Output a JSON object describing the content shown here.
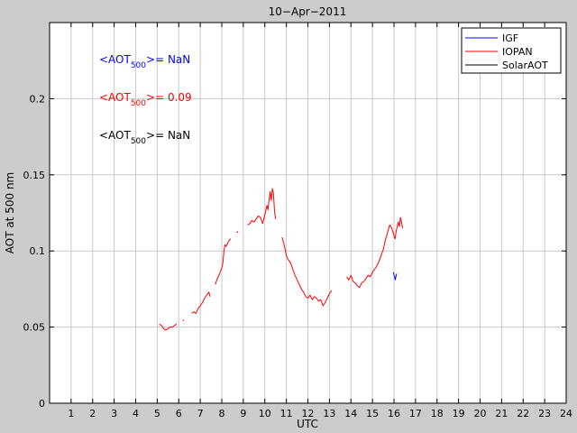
{
  "chart_data": {
    "type": "line",
    "title": "10−Apr−2011",
    "xlabel": "UTC",
    "ylabel": "AOT at 500 nm",
    "xlim": [
      0,
      24
    ],
    "ylim": [
      0,
      0.25
    ],
    "xticks": [
      1,
      2,
      3,
      4,
      5,
      6,
      7,
      8,
      9,
      10,
      11,
      12,
      13,
      14,
      15,
      16,
      17,
      18,
      19,
      20,
      21,
      22,
      23,
      24
    ],
    "yticks": [
      0,
      0.05,
      0.1,
      0.15,
      0.2
    ],
    "ytick_labels": [
      "0",
      "0.05",
      "0.1",
      "0.15",
      "0.2"
    ],
    "grid": true,
    "legend_position": "top-right",
    "annotations": [
      {
        "pre": "<AOT",
        "sub": "500",
        "post": ">=  NaN",
        "color": "#0000ff"
      },
      {
        "pre": "<AOT",
        "sub": "500",
        "post": ">= 0.09",
        "color": "#ff0000"
      },
      {
        "pre": "<AOT",
        "sub": "500",
        "post": ">=  NaN",
        "color": "#000000"
      }
    ],
    "series": [
      {
        "name": "IGF",
        "color": "#0000ff",
        "segments": [
          [
            [
              15.98,
              0.086
            ],
            [
              16.0,
              0.084
            ],
            [
              16.03,
              0.083
            ],
            [
              16.06,
              0.081
            ],
            [
              16.09,
              0.083
            ],
            [
              16.12,
              0.085
            ]
          ]
        ]
      },
      {
        "name": "IOPAN",
        "color": "#ff0000",
        "segments": [
          [
            [
              5.1,
              0.052
            ],
            [
              5.2,
              0.051
            ],
            [
              5.3,
              0.049
            ],
            [
              5.4,
              0.048
            ],
            [
              5.5,
              0.049
            ],
            [
              5.6,
              0.05
            ],
            [
              5.7,
              0.05
            ],
            [
              5.8,
              0.051
            ],
            [
              5.9,
              0.052
            ]
          ],
          [
            [
              6.2,
              0.055
            ],
            [
              6.22,
              0.054
            ]
          ],
          [
            [
              6.6,
              0.059
            ],
            [
              6.7,
              0.06
            ],
            [
              6.8,
              0.059
            ],
            [
              6.9,
              0.062
            ],
            [
              7.0,
              0.064
            ],
            [
              7.1,
              0.066
            ],
            [
              7.2,
              0.069
            ],
            [
              7.3,
              0.071
            ],
            [
              7.4,
              0.073
            ],
            [
              7.45,
              0.07
            ]
          ],
          [
            [
              7.7,
              0.078
            ],
            [
              7.8,
              0.082
            ],
            [
              7.9,
              0.085
            ],
            [
              8.0,
              0.089
            ],
            [
              8.05,
              0.092
            ],
            [
              8.1,
              0.1
            ],
            [
              8.15,
              0.104
            ],
            [
              8.2,
              0.103
            ],
            [
              8.3,
              0.106
            ],
            [
              8.4,
              0.108
            ]
          ],
          [
            [
              8.7,
              0.113
            ],
            [
              8.75,
              0.112
            ]
          ],
          [
            [
              9.2,
              0.117
            ],
            [
              9.3,
              0.118
            ],
            [
              9.4,
              0.12
            ],
            [
              9.5,
              0.119
            ],
            [
              9.6,
              0.121
            ],
            [
              9.7,
              0.123
            ],
            [
              9.8,
              0.122
            ],
            [
              9.9,
              0.118
            ],
            [
              10.0,
              0.124
            ],
            [
              10.1,
              0.13
            ],
            [
              10.15,
              0.127
            ],
            [
              10.2,
              0.134
            ],
            [
              10.25,
              0.139
            ],
            [
              10.3,
              0.133
            ],
            [
              10.35,
              0.141
            ],
            [
              10.4,
              0.138
            ],
            [
              10.45,
              0.126
            ],
            [
              10.5,
              0.121
            ]
          ],
          [
            [
              10.8,
              0.109
            ],
            [
              10.9,
              0.104
            ],
            [
              11.0,
              0.097
            ],
            [
              11.1,
              0.094
            ],
            [
              11.2,
              0.092
            ],
            [
              11.3,
              0.088
            ],
            [
              11.4,
              0.084
            ],
            [
              11.5,
              0.081
            ],
            [
              11.6,
              0.078
            ],
            [
              11.7,
              0.075
            ],
            [
              11.8,
              0.073
            ],
            [
              11.9,
              0.07
            ],
            [
              12.0,
              0.069
            ],
            [
              12.1,
              0.071
            ],
            [
              12.2,
              0.068
            ],
            [
              12.3,
              0.07
            ],
            [
              12.4,
              0.069
            ],
            [
              12.5,
              0.067
            ],
            [
              12.6,
              0.068
            ],
            [
              12.7,
              0.064
            ],
            [
              12.8,
              0.066
            ],
            [
              12.9,
              0.069
            ],
            [
              13.0,
              0.072
            ],
            [
              13.1,
              0.074
            ]
          ],
          [
            [
              13.8,
              0.083
            ],
            [
              13.9,
              0.081
            ],
            [
              14.0,
              0.084
            ],
            [
              14.1,
              0.08
            ],
            [
              14.2,
              0.079
            ],
            [
              14.3,
              0.077
            ],
            [
              14.4,
              0.076
            ],
            [
              14.5,
              0.079
            ],
            [
              14.6,
              0.08
            ],
            [
              14.7,
              0.082
            ],
            [
              14.8,
              0.084
            ],
            [
              14.9,
              0.083
            ],
            [
              15.0,
              0.086
            ],
            [
              15.1,
              0.088
            ],
            [
              15.2,
              0.09
            ],
            [
              15.3,
              0.093
            ],
            [
              15.4,
              0.097
            ],
            [
              15.5,
              0.101
            ],
            [
              15.6,
              0.107
            ],
            [
              15.7,
              0.112
            ],
            [
              15.8,
              0.117
            ],
            [
              15.9,
              0.115
            ],
            [
              16.0,
              0.11
            ],
            [
              16.05,
              0.108
            ],
            [
              16.1,
              0.113
            ],
            [
              16.2,
              0.119
            ],
            [
              16.25,
              0.116
            ],
            [
              16.3,
              0.122
            ],
            [
              16.35,
              0.119
            ],
            [
              16.4,
              0.115
            ]
          ]
        ]
      },
      {
        "name": "SolarAOT",
        "color": "#000000",
        "segments": []
      }
    ]
  }
}
